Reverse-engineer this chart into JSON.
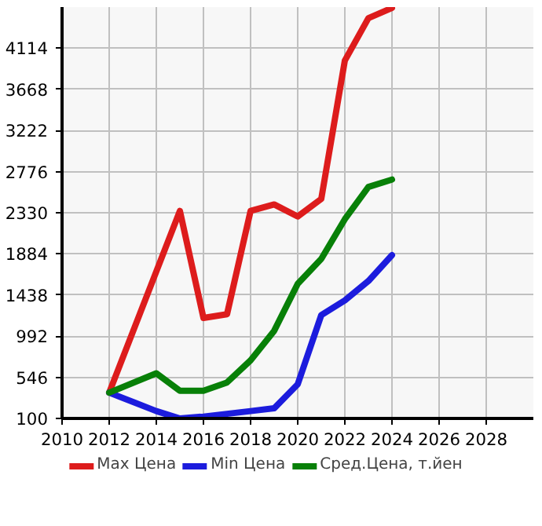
{
  "chart_data": {
    "type": "line",
    "x": [
      2012,
      2014,
      2015,
      2016,
      2017,
      2018,
      2019,
      2020,
      2021,
      2022,
      2023,
      2024
    ],
    "series": [
      {
        "name": "Max Цена",
        "color": "#dd1c1c",
        "values": [
          380,
          null,
          2350,
          1190,
          1230,
          2350,
          2420,
          2290,
          2480,
          3980,
          4440,
          4550
        ],
        "x": [
          2012,
          2014,
          2015,
          2016,
          2017,
          2018,
          2019,
          2020,
          2021,
          2022,
          2023,
          2024
        ]
      },
      {
        "name": "Min Цена",
        "color": "#1c1cdd",
        "values": [
          380,
          180,
          100,
          120,
          150,
          180,
          210,
          470,
          1220,
          1380,
          1590,
          1870
        ]
      },
      {
        "name": "Сред.Цена, т.йен",
        "color": "#088008",
        "values": [
          380,
          590,
          400,
          400,
          490,
          730,
          1050,
          1560,
          1830,
          2260,
          2610,
          2690
        ]
      }
    ],
    "xlim": [
      2010,
      2030
    ],
    "xticks": [
      2010,
      2012,
      2014,
      2016,
      2018,
      2020,
      2022,
      2024,
      2026,
      2028
    ],
    "ylim": [
      100,
      4560
    ],
    "yticks": [
      100,
      546,
      992,
      1438,
      1884,
      2330,
      2776,
      3222,
      3668,
      4114
    ],
    "grid": true,
    "legend": "bottom",
    "marker": "none",
    "line_style": "solid"
  }
}
